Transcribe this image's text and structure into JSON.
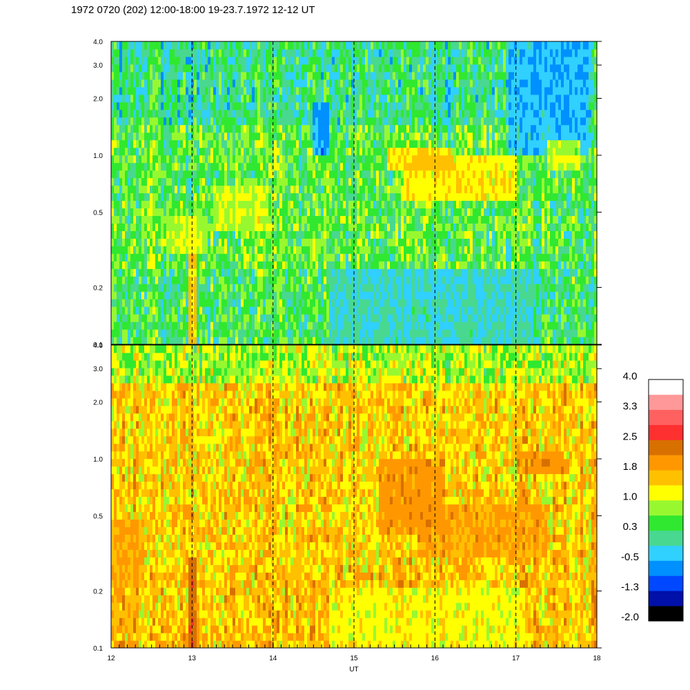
{
  "title": "1972 0720 (202) 12:00-18:00 19-23.7.1972  12-12 UT",
  "chart_data": {
    "type": "heatmap",
    "xlabel": "UT",
    "x_range": [
      12,
      18
    ],
    "x_ticks": [
      "12",
      "13",
      "14",
      "15",
      "16",
      "17",
      "18"
    ],
    "y_scale": "log",
    "y_range": [
      0.1,
      4.0
    ],
    "y_ticks": [
      {
        "v": 0.1,
        "label": "0.1"
      },
      {
        "v": 0.2,
        "label": "0.2"
      },
      {
        "v": 0.5,
        "label": "0.5"
      },
      {
        "v": 1.0,
        "label": "1.0"
      },
      {
        "v": 2.0,
        "label": "2.0"
      },
      {
        "v": 3.0,
        "label": "3.0"
      },
      {
        "v": 4.0,
        "label": "4.0"
      }
    ],
    "vertical_dashed_lines_at": [
      13,
      14,
      15,
      16,
      17
    ],
    "panels": [
      {
        "name": "upper",
        "base_level": 0.5,
        "features": [
          {
            "x": 13.0,
            "dx": 0.05,
            "y0": 0.1,
            "y1": 0.5,
            "level": 2.0
          },
          {
            "x": 13.6,
            "dx": 0.35,
            "y0": 0.4,
            "y1": 0.7,
            "level": 1.2
          },
          {
            "x": 12.9,
            "dx": 0.3,
            "y0": 0.3,
            "y1": 0.5,
            "level": 1.1
          },
          {
            "x": 14.6,
            "dx": 0.1,
            "y0": 1.0,
            "y1": 2.0,
            "level": -1.0
          },
          {
            "x": 15.2,
            "dx": 0.5,
            "y0": 0.1,
            "y1": 0.25,
            "level": -0.3
          },
          {
            "x": 16.4,
            "dx": 0.8,
            "y0": 0.1,
            "y1": 0.25,
            "level": -0.3
          },
          {
            "x": 16.3,
            "dx": 0.7,
            "y0": 0.6,
            "y1": 1.0,
            "level": 1.6
          },
          {
            "x": 15.8,
            "dx": 0.4,
            "y0": 0.8,
            "y1": 1.1,
            "level": 1.7
          },
          {
            "x": 17.4,
            "dx": 0.5,
            "y0": 1.0,
            "y1": 4.0,
            "level": -0.7
          },
          {
            "x": 17.6,
            "dx": 0.2,
            "y0": 0.8,
            "y1": 1.2,
            "level": 1.4
          }
        ]
      },
      {
        "name": "lower",
        "base_level": 1.5,
        "features": [
          {
            "x": 13.0,
            "dx": 0.05,
            "y0": 0.1,
            "y1": 0.3,
            "level": 2.7
          },
          {
            "x": 15.2,
            "dx": 0.5,
            "y0": 0.1,
            "y1": 0.2,
            "level": 1.0
          },
          {
            "x": 16.4,
            "dx": 0.7,
            "y0": 0.1,
            "y1": 0.2,
            "level": 1.0
          },
          {
            "x": 15.7,
            "dx": 0.4,
            "y0": 0.4,
            "y1": 1.0,
            "level": 2.1
          },
          {
            "x": 17.3,
            "dx": 0.3,
            "y0": 0.8,
            "y1": 1.1,
            "level": 2.2
          },
          {
            "x": 12.2,
            "dx": 0.2,
            "y0": 0.2,
            "y1": 0.5,
            "level": 1.9
          },
          {
            "x": 16.6,
            "dx": 0.8,
            "y0": 0.3,
            "y1": 0.6,
            "level": 2.0
          }
        ]
      }
    ],
    "colorbar": {
      "colors": [
        "#000000",
        "#0010a8",
        "#0048ff",
        "#0090ff",
        "#30d0ff",
        "#48d890",
        "#30e830",
        "#98f830",
        "#ffff00",
        "#ffc000",
        "#ff9800",
        "#d87000",
        "#ff3030",
        "#ff6060",
        "#ff9898",
        "#ffffff"
      ],
      "labels": [
        "4.0",
        "3.3",
        "2.5",
        "1.8",
        "1.0",
        "0.3",
        "-0.5",
        "-1.3",
        "-2.0"
      ],
      "range": [
        -2.0,
        4.0
      ]
    }
  }
}
